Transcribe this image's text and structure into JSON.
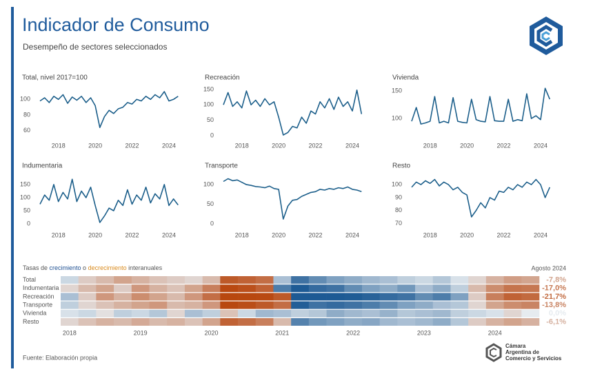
{
  "header": {
    "title": "Indicador de Consumo",
    "subtitle": "Desempeño de sectores seleccionados"
  },
  "chart_data": [
    {
      "type": "line",
      "title": "Total, nivel 2017=100",
      "x": [
        2017,
        2017.25,
        2017.5,
        2017.75,
        2018,
        2018.25,
        2018.5,
        2018.75,
        2019,
        2019.25,
        2019.5,
        2019.75,
        2020,
        2020.25,
        2020.5,
        2020.75,
        2021,
        2021.25,
        2021.5,
        2021.75,
        2022,
        2022.25,
        2022.5,
        2022.75,
        2023,
        2023.25,
        2023.5,
        2023.75,
        2024,
        2024.25,
        2024.5
      ],
      "series": [
        {
          "color": "#1b5e8a",
          "values": [
            98,
            102,
            96,
            104,
            100,
            106,
            95,
            103,
            99,
            104,
            96,
            102,
            92,
            64,
            78,
            86,
            82,
            88,
            90,
            96,
            94,
            100,
            98,
            104,
            100,
            106,
            102,
            110,
            98,
            100,
            104
          ]
        }
      ],
      "xlim": [
        2017,
        2024.75
      ],
      "ylim": [
        51,
        117
      ],
      "xticks": [
        2018,
        2020,
        2022,
        2024
      ],
      "yticks": [
        60,
        80,
        100
      ]
    },
    {
      "type": "line",
      "title": "Recreación",
      "x": [
        2017,
        2017.25,
        2017.5,
        2017.75,
        2018,
        2018.25,
        2018.5,
        2018.75,
        2019,
        2019.25,
        2019.5,
        2019.75,
        2020,
        2020.25,
        2020.5,
        2020.75,
        2021,
        2021.25,
        2021.5,
        2021.75,
        2022,
        2022.25,
        2022.5,
        2022.75,
        2023,
        2023.25,
        2023.5,
        2023.75,
        2024,
        2024.25,
        2024.5
      ],
      "series": [
        {
          "color": "#1b5e8a",
          "values": [
            100,
            140,
            95,
            110,
            90,
            145,
            100,
            115,
            95,
            120,
            100,
            110,
            60,
            2,
            10,
            30,
            25,
            60,
            40,
            80,
            70,
            110,
            90,
            120,
            85,
            125,
            95,
            110,
            80,
            148,
            70
          ]
        }
      ],
      "xlim": [
        2017,
        2024.75
      ],
      "ylim": [
        -7,
        161
      ],
      "xticks": [
        2018,
        2020,
        2022,
        2024
      ],
      "yticks": [
        0,
        50,
        100,
        150
      ]
    },
    {
      "type": "line",
      "title": "Vivienda",
      "x": [
        2017,
        2017.25,
        2017.5,
        2017.75,
        2018,
        2018.25,
        2018.5,
        2018.75,
        2019,
        2019.25,
        2019.5,
        2019.75,
        2020,
        2020.25,
        2020.5,
        2020.75,
        2021,
        2021.25,
        2021.5,
        2021.75,
        2022,
        2022.25,
        2022.5,
        2022.75,
        2023,
        2023.25,
        2023.5,
        2023.75,
        2024,
        2024.25,
        2024.5
      ],
      "series": [
        {
          "color": "#1b5e8a",
          "values": [
            95,
            120,
            90,
            92,
            95,
            140,
            92,
            95,
            92,
            138,
            95,
            93,
            92,
            135,
            98,
            95,
            94,
            140,
            96,
            95,
            95,
            135,
            95,
            98,
            96,
            145,
            100,
            105,
            98,
            155,
            135
          ]
        }
      ],
      "xlim": [
        2017,
        2024.75
      ],
      "ylim": [
        65,
        159
      ],
      "xticks": [
        2018,
        2020,
        2022,
        2024
      ],
      "yticks": [
        100,
        150
      ]
    },
    {
      "type": "line",
      "title": "Indumentaria",
      "x": [
        2017,
        2017.25,
        2017.5,
        2017.75,
        2018,
        2018.25,
        2018.5,
        2018.75,
        2019,
        2019.25,
        2019.5,
        2019.75,
        2020,
        2020.25,
        2020.5,
        2020.75,
        2021,
        2021.25,
        2021.5,
        2021.75,
        2022,
        2022.25,
        2022.5,
        2022.75,
        2023,
        2023.25,
        2023.5,
        2023.75,
        2024,
        2024.25,
        2024.5
      ],
      "series": [
        {
          "color": "#1b5e8a",
          "values": [
            75,
            110,
            90,
            150,
            85,
            120,
            95,
            170,
            85,
            125,
            100,
            140,
            70,
            5,
            30,
            60,
            50,
            90,
            70,
            130,
            75,
            110,
            90,
            140,
            80,
            115,
            95,
            150,
            70,
            95,
            72
          ]
        }
      ],
      "xlim": [
        2017,
        2024.75
      ],
      "ylim": [
        -13,
        184
      ],
      "xticks": [
        2018,
        2020,
        2022,
        2024
      ],
      "yticks": [
        0,
        50,
        100,
        150
      ]
    },
    {
      "type": "line",
      "title": "Transporte",
      "x": [
        2017,
        2017.25,
        2017.5,
        2017.75,
        2018,
        2018.25,
        2018.5,
        2018.75,
        2019,
        2019.25,
        2019.5,
        2019.75,
        2020,
        2020.25,
        2020.5,
        2020.75,
        2021,
        2021.25,
        2021.5,
        2021.75,
        2022,
        2022.25,
        2022.5,
        2022.75,
        2023,
        2023.25,
        2023.5,
        2023.75,
        2024,
        2024.25,
        2024.5
      ],
      "series": [
        {
          "color": "#1b5e8a",
          "values": [
            108,
            115,
            110,
            112,
            106,
            100,
            98,
            95,
            94,
            92,
            96,
            90,
            88,
            12,
            45,
            60,
            62,
            70,
            75,
            80,
            82,
            88,
            86,
            90,
            88,
            92,
            90,
            94,
            88,
            86,
            82
          ]
        }
      ],
      "xlim": [
        2017,
        2024.75
      ],
      "ylim": [
        -9,
        123
      ],
      "xticks": [
        2018,
        2020,
        2022,
        2024
      ],
      "yticks": [
        0,
        50,
        100
      ]
    },
    {
      "type": "line",
      "title": "Resto",
      "x": [
        2017,
        2017.25,
        2017.5,
        2017.75,
        2018,
        2018.25,
        2018.5,
        2018.75,
        2019,
        2019.25,
        2019.5,
        2019.75,
        2020,
        2020.25,
        2020.5,
        2020.75,
        2021,
        2021.25,
        2021.5,
        2021.75,
        2022,
        2022.25,
        2022.5,
        2022.75,
        2023,
        2023.25,
        2023.5,
        2023.75,
        2024,
        2024.25,
        2024.5
      ],
      "series": [
        {
          "color": "#1b5e8a",
          "values": [
            98,
            102,
            100,
            103,
            101,
            104,
            99,
            102,
            100,
            96,
            98,
            94,
            92,
            75,
            80,
            86,
            82,
            90,
            88,
            95,
            94,
            98,
            96,
            100,
            98,
            102,
            100,
            104,
            100,
            90,
            98
          ]
        }
      ],
      "xlim": [
        2017,
        2024.75
      ],
      "ylim": [
        67,
        107
      ],
      "xticks": [
        2018,
        2020,
        2022,
        2024
      ],
      "yticks": [
        70,
        80,
        90,
        100
      ]
    },
    {
      "type": "heatmap",
      "title_parts": [
        {
          "text": "Tasas de "
        },
        {
          "text": "crecimiento",
          "color": "#1d4f91"
        },
        {
          "text": " o "
        },
        {
          "text": "decrecimiento",
          "color": "#d98a1c"
        },
        {
          "text": " interanuales"
        }
      ],
      "period": "Agosto 2024",
      "colors": {
        "positive": "#1d5a94",
        "negative": "#b8470f",
        "neutral": "#e6ebef"
      },
      "x": [
        2018,
        2018.25,
        2018.5,
        2018.75,
        2019,
        2019.25,
        2019.5,
        2019.75,
        2020,
        2020.25,
        2020.5,
        2020.75,
        2021,
        2021.25,
        2021.5,
        2021.75,
        2022,
        2022.25,
        2022.5,
        2022.75,
        2023,
        2023.25,
        2023.5,
        2023.75,
        2024,
        2024.25,
        2024.5
      ],
      "xlim": [
        2017.875,
        2024.625
      ],
      "xticks": [
        2018,
        2019,
        2020,
        2021,
        2022,
        2023,
        2024
      ],
      "rows": [
        {
          "name": "Total",
          "values": [
            2,
            -3,
            -5,
            -8,
            -6,
            -4,
            -3,
            -2,
            -5,
            -30,
            -25,
            -20,
            5,
            25,
            15,
            10,
            8,
            6,
            5,
            3,
            2,
            4,
            1,
            -2,
            -6,
            -9,
            -7.8
          ],
          "latest_value": -7.8,
          "latest_label": "-7,8%"
        },
        {
          "name": "Indumentaria",
          "values": [
            -2,
            -5,
            -8,
            -3,
            -10,
            -6,
            -4,
            -8,
            -15,
            -60,
            -40,
            -25,
            20,
            70,
            30,
            25,
            15,
            10,
            8,
            12,
            5,
            8,
            3,
            -5,
            -12,
            -18,
            -17.0
          ],
          "latest_value": -17.0,
          "latest_label": "-17,0%"
        },
        {
          "name": "Recreación",
          "values": [
            5,
            -3,
            -10,
            -6,
            -12,
            -8,
            -5,
            -10,
            -20,
            -90,
            -80,
            -60,
            -30,
            90,
            120,
            110,
            60,
            40,
            30,
            25,
            15,
            20,
            10,
            -3,
            -15,
            -25,
            -21.7
          ],
          "latest_value": -21.7,
          "latest_label": "-21,7%"
        },
        {
          "name": "Transporte",
          "values": [
            3,
            -2,
            -4,
            -6,
            -8,
            -10,
            -5,
            -6,
            -10,
            -70,
            -45,
            -30,
            -20,
            50,
            25,
            30,
            25,
            20,
            15,
            10,
            8,
            5,
            4,
            -2,
            -8,
            -12,
            -13.8
          ],
          "latest_value": -13.8,
          "latest_label": "-13,8%"
        },
        {
          "name": "Vivienda",
          "values": [
            1,
            2,
            -1,
            3,
            2,
            4,
            -2,
            5,
            3,
            -4,
            2,
            6,
            5,
            3,
            4,
            8,
            6,
            5,
            7,
            4,
            5,
            6,
            3,
            2,
            1,
            -2,
            0.0
          ],
          "latest_value": 0.0,
          "latest_label": "0,0%"
        },
        {
          "name": "Resto",
          "values": [
            -2,
            -4,
            -6,
            -5,
            -7,
            -5,
            -6,
            -4,
            -8,
            -25,
            -20,
            -15,
            -5,
            18,
            12,
            10,
            8,
            9,
            6,
            5,
            6,
            8,
            4,
            -3,
            -6,
            -8,
            -6.1
          ],
          "latest_value": -6.1,
          "latest_label": "-6,1%"
        }
      ]
    }
  ],
  "footer": {
    "source": "Fuente: Elaboración propia"
  },
  "org": {
    "name_lines": [
      "Cámara",
      "Argentina de",
      "Comercio y Servicios"
    ]
  }
}
